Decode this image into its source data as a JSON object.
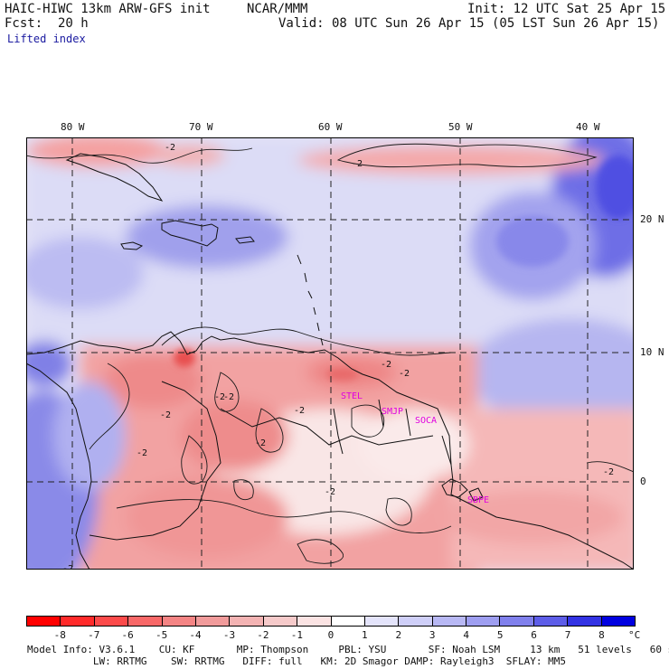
{
  "header": {
    "model": "HAIC-HIWC 13km ARW-GFS init",
    "org": "NCAR/MMM",
    "init": "Init: 12 UTC Sat 25 Apr 15",
    "fcst_label": "Fcst:",
    "fcst_value": "20 h",
    "valid": "Valid: 08 UTC Sun 26 Apr 15 (05 LST Sun 26 Apr 15)",
    "field": "Lifted index"
  },
  "map": {
    "lon_labels": [
      "80 W",
      "70 W",
      "60 W",
      "50 W",
      "40 W"
    ],
    "lat_labels": [
      "20 N",
      "10 N",
      "0"
    ],
    "contour_labels": [
      "-2",
      "-2",
      "-2",
      "-2",
      "-2",
      "-2",
      "-2",
      "-2",
      "-2",
      "-2",
      "-2",
      "-2",
      "-2"
    ],
    "station_labels": [
      "STEL",
      "SMJP",
      "SOCA",
      "SBPE"
    ],
    "station_color": "#e000e0",
    "colors": {
      "neg_strong": "#ff3333",
      "neg_mid": "#f07a7a",
      "neg_light": "#f9b9b9",
      "neutral": "#f6efef",
      "pos_light": "#dcdcf8",
      "pos_mid": "#a6a6ee",
      "pos_strong": "#5656e6"
    }
  },
  "colorbar": {
    "labels": [
      "-8",
      "-7",
      "-6",
      "-5",
      "-4",
      "-3",
      "-2",
      "-1",
      "0",
      "1",
      "2",
      "3",
      "4",
      "5",
      "6",
      "7",
      "8"
    ],
    "unit": "°C",
    "colors": [
      "#ff0000",
      "#ff2a2a",
      "#fc4a4a",
      "#f86868",
      "#f48484",
      "#f19b9b",
      "#f3b3b3",
      "#f6caca",
      "#fbe3e3",
      "#ffffff",
      "#e4e4fb",
      "#cfcff8",
      "#b8b8f4",
      "#9e9ef0",
      "#8080ec",
      "#5d5de8",
      "#3333e4",
      "#0000e0"
    ]
  },
  "model_info": {
    "line1": "Model Info: V3.6.1    CU: KF       MP: Thompson     PBL: YSU       SF: Noah LSM     13 km   51 levels   60 sec",
    "line2": "           LW: RRTMG    SW: RRTMG   DIFF: full   KM: 2D Smagor DAMP: Rayleigh3  SFLAY: MM5"
  }
}
